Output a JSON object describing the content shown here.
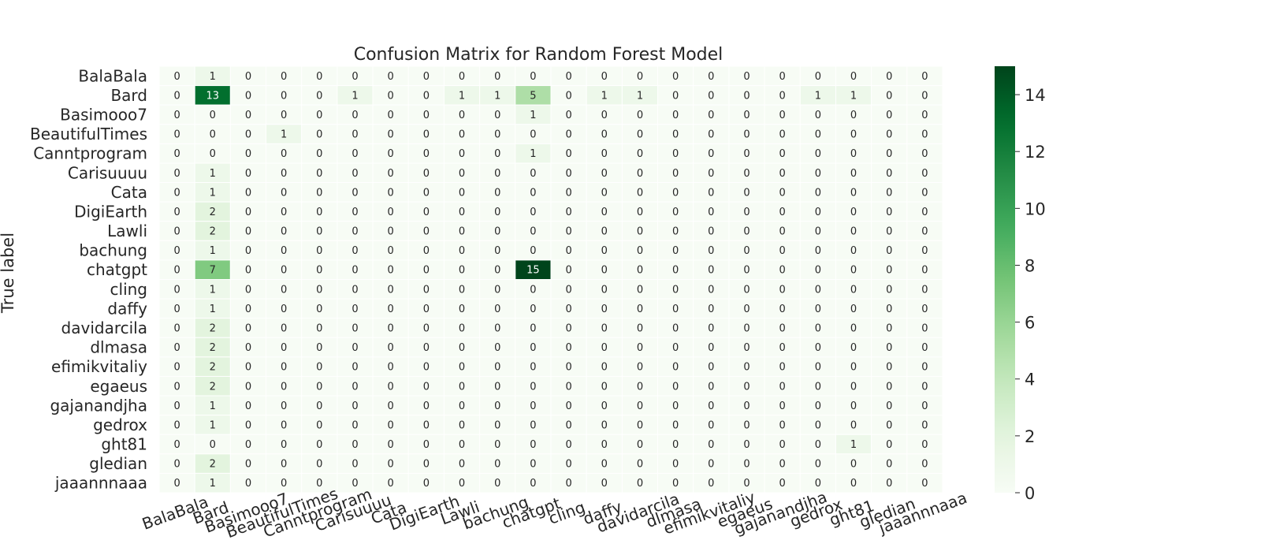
{
  "chart_data": {
    "type": "heatmap",
    "title": "Confusion Matrix for Random Forest Model",
    "ylabel": "True label",
    "xlabel": "",
    "labels": [
      "BalaBala",
      "Bard",
      "Basimooo7",
      "BeautifulTimes",
      "Canntprogram",
      "Carisuuuu",
      "Cata",
      "DigiEarth",
      "Lawli",
      "bachung",
      "chatgpt",
      "cling",
      "daffy",
      "davidarcila",
      "dlmasa",
      "efimikvitaliy",
      "egaeus",
      "gajanandjha",
      "gedrox",
      "ght81",
      "gledian",
      "jaaannnaaa"
    ],
    "x_tick_labels": [
      "BalaBala",
      "Bard",
      "Basimooo7",
      "BeautifulTimes",
      "Canntprogram",
      "Carisuuuu",
      "Cata",
      "DigiEarth",
      "Lawli",
      "bachung",
      "chatgpt",
      "cling",
      "daffy",
      "davidarcila",
      "dlmasa",
      "efimikvitaliy",
      "egaeus",
      "gajanandjha",
      "gedrox",
      "ght81",
      "gledian",
      "jaaannnaaa"
    ],
    "matrix": [
      [
        0,
        1,
        0,
        0,
        0,
        0,
        0,
        0,
        0,
        0,
        0,
        0,
        0,
        0,
        0,
        0,
        0,
        0,
        0,
        0,
        0,
        0
      ],
      [
        0,
        13,
        0,
        0,
        0,
        1,
        0,
        0,
        1,
        1,
        5,
        0,
        1,
        1,
        0,
        0,
        0,
        0,
        1,
        1,
        0,
        0
      ],
      [
        0,
        0,
        0,
        0,
        0,
        0,
        0,
        0,
        0,
        0,
        1,
        0,
        0,
        0,
        0,
        0,
        0,
        0,
        0,
        0,
        0,
        0
      ],
      [
        0,
        0,
        0,
        1,
        0,
        0,
        0,
        0,
        0,
        0,
        0,
        0,
        0,
        0,
        0,
        0,
        0,
        0,
        0,
        0,
        0,
        0
      ],
      [
        0,
        0,
        0,
        0,
        0,
        0,
        0,
        0,
        0,
        0,
        1,
        0,
        0,
        0,
        0,
        0,
        0,
        0,
        0,
        0,
        0,
        0
      ],
      [
        0,
        1,
        0,
        0,
        0,
        0,
        0,
        0,
        0,
        0,
        0,
        0,
        0,
        0,
        0,
        0,
        0,
        0,
        0,
        0,
        0,
        0
      ],
      [
        0,
        1,
        0,
        0,
        0,
        0,
        0,
        0,
        0,
        0,
        0,
        0,
        0,
        0,
        0,
        0,
        0,
        0,
        0,
        0,
        0,
        0
      ],
      [
        0,
        2,
        0,
        0,
        0,
        0,
        0,
        0,
        0,
        0,
        0,
        0,
        0,
        0,
        0,
        0,
        0,
        0,
        0,
        0,
        0,
        0
      ],
      [
        0,
        2,
        0,
        0,
        0,
        0,
        0,
        0,
        0,
        0,
        0,
        0,
        0,
        0,
        0,
        0,
        0,
        0,
        0,
        0,
        0,
        0
      ],
      [
        0,
        1,
        0,
        0,
        0,
        0,
        0,
        0,
        0,
        0,
        0,
        0,
        0,
        0,
        0,
        0,
        0,
        0,
        0,
        0,
        0,
        0
      ],
      [
        0,
        7,
        0,
        0,
        0,
        0,
        0,
        0,
        0,
        0,
        15,
        0,
        0,
        0,
        0,
        0,
        0,
        0,
        0,
        0,
        0,
        0
      ],
      [
        0,
        1,
        0,
        0,
        0,
        0,
        0,
        0,
        0,
        0,
        0,
        0,
        0,
        0,
        0,
        0,
        0,
        0,
        0,
        0,
        0,
        0
      ],
      [
        0,
        1,
        0,
        0,
        0,
        0,
        0,
        0,
        0,
        0,
        0,
        0,
        0,
        0,
        0,
        0,
        0,
        0,
        0,
        0,
        0,
        0
      ],
      [
        0,
        2,
        0,
        0,
        0,
        0,
        0,
        0,
        0,
        0,
        0,
        0,
        0,
        0,
        0,
        0,
        0,
        0,
        0,
        0,
        0,
        0
      ],
      [
        0,
        2,
        0,
        0,
        0,
        0,
        0,
        0,
        0,
        0,
        0,
        0,
        0,
        0,
        0,
        0,
        0,
        0,
        0,
        0,
        0,
        0
      ],
      [
        0,
        2,
        0,
        0,
        0,
        0,
        0,
        0,
        0,
        0,
        0,
        0,
        0,
        0,
        0,
        0,
        0,
        0,
        0,
        0,
        0,
        0
      ],
      [
        0,
        2,
        0,
        0,
        0,
        0,
        0,
        0,
        0,
        0,
        0,
        0,
        0,
        0,
        0,
        0,
        0,
        0,
        0,
        0,
        0,
        0
      ],
      [
        0,
        1,
        0,
        0,
        0,
        0,
        0,
        0,
        0,
        0,
        0,
        0,
        0,
        0,
        0,
        0,
        0,
        0,
        0,
        0,
        0,
        0
      ],
      [
        0,
        1,
        0,
        0,
        0,
        0,
        0,
        0,
        0,
        0,
        0,
        0,
        0,
        0,
        0,
        0,
        0,
        0,
        0,
        0,
        0,
        0
      ],
      [
        0,
        0,
        0,
        0,
        0,
        0,
        0,
        0,
        0,
        0,
        0,
        0,
        0,
        0,
        0,
        0,
        0,
        0,
        0,
        1,
        0,
        0
      ],
      [
        0,
        2,
        0,
        0,
        0,
        0,
        0,
        0,
        0,
        0,
        0,
        0,
        0,
        0,
        0,
        0,
        0,
        0,
        0,
        0,
        0,
        0
      ],
      [
        0,
        1,
        0,
        0,
        0,
        0,
        0,
        0,
        0,
        0,
        0,
        0,
        0,
        0,
        0,
        0,
        0,
        0,
        0,
        0,
        0,
        0
      ]
    ],
    "colormap": "Greens",
    "vmin": 0,
    "vmax": 15,
    "colorbar_ticks": [
      0,
      2,
      4,
      6,
      8,
      10,
      12,
      14
    ],
    "cell_annotations": true,
    "grid": false,
    "colorbar_placement": "right",
    "x_tick_rotation_deg": 20
  },
  "colors": {
    "text": "#262626",
    "cell_border": "#ffffff",
    "annot_light": "#262626",
    "annot_dark": "#ffffff"
  }
}
